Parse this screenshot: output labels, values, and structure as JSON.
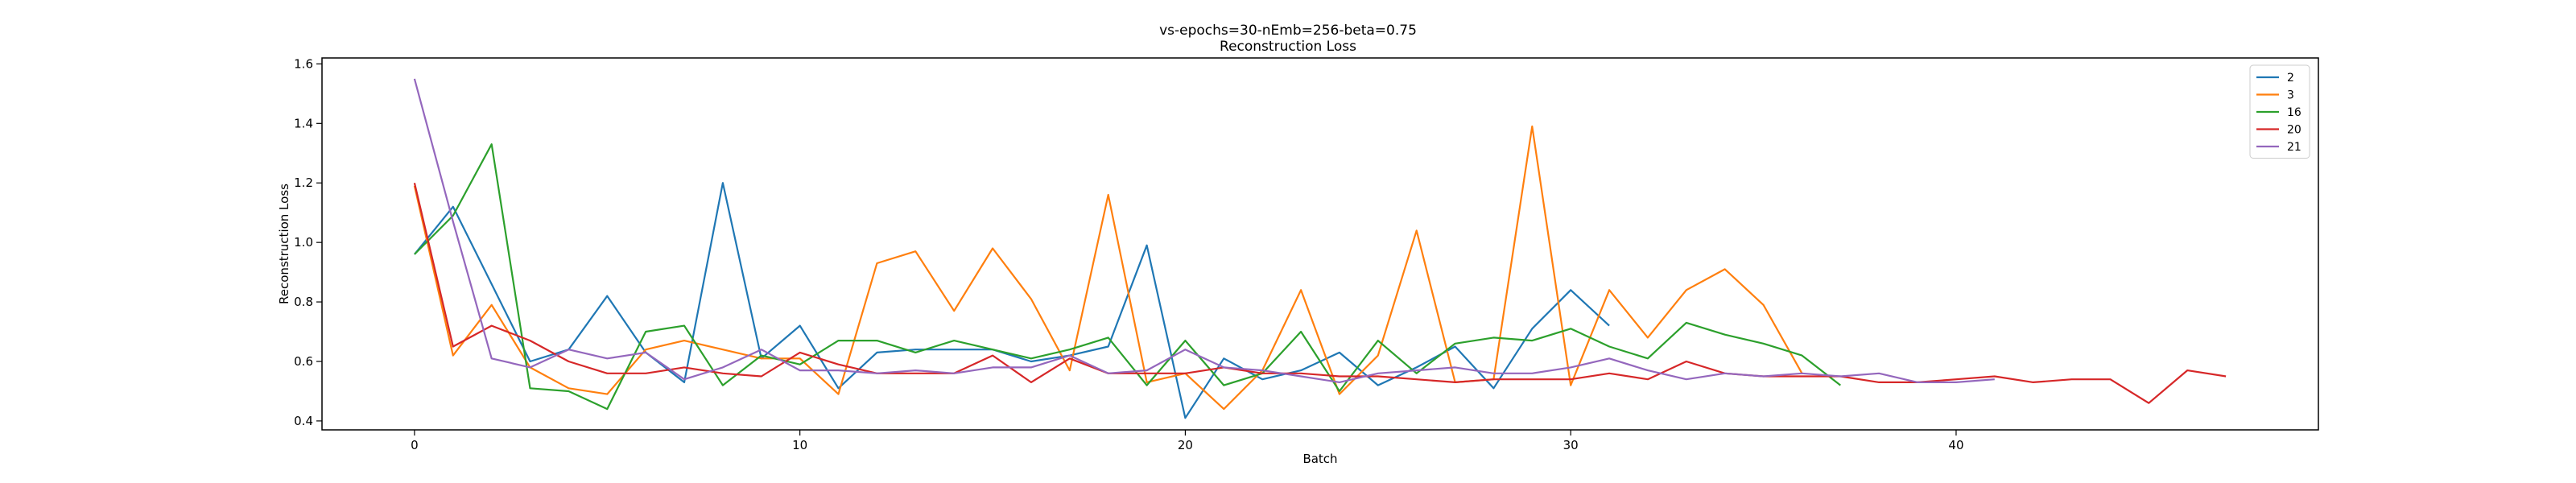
{
  "chart_data": {
    "type": "line",
    "title": "vs-epochs=30-nEmb=256-beta=0.75",
    "subtitle": "Reconstruction Loss",
    "xlabel": "Batch",
    "ylabel": "Reconstruction Loss",
    "xlim": [
      -2.4,
      49.4
    ],
    "ylim": [
      0.37,
      1.62
    ],
    "xticks": [
      0,
      10,
      20,
      30,
      40
    ],
    "yticks": [
      0.4,
      0.6,
      0.8,
      1.0,
      1.2,
      1.4,
      1.6
    ],
    "ytick_labels": [
      "0.4",
      "0.6",
      "0.8",
      "1.0",
      "1.2",
      "1.4",
      "1.6"
    ],
    "grid": false,
    "legend_position": "top-right",
    "series": [
      {
        "name": "2",
        "color": "#1f77b4",
        "x": [
          0,
          1,
          2,
          3,
          4,
          5,
          6,
          7,
          8,
          9,
          10,
          11,
          12,
          13,
          14,
          15,
          16,
          17,
          18,
          19,
          20,
          21,
          22,
          23,
          24,
          25,
          26,
          27,
          28,
          29,
          30,
          31
        ],
        "y": [
          0.96,
          1.12,
          0.86,
          0.6,
          0.64,
          0.82,
          0.63,
          0.53,
          1.2,
          0.61,
          0.72,
          0.51,
          0.63,
          0.64,
          0.64,
          0.64,
          0.6,
          0.62,
          0.65,
          0.99,
          0.41,
          0.61,
          0.54,
          0.57,
          0.63,
          0.52,
          0.58,
          0.65,
          0.51,
          0.71,
          0.84,
          0.72
        ]
      },
      {
        "name": "3",
        "color": "#ff7f0e",
        "x": [
          0,
          1,
          2,
          3,
          4,
          5,
          6,
          7,
          8,
          9,
          10,
          11,
          12,
          13,
          14,
          15,
          16,
          17,
          18,
          19,
          20,
          21,
          22,
          23,
          24,
          25,
          26,
          27,
          28,
          29,
          30,
          31,
          32,
          33,
          34,
          35,
          36
        ],
        "y": [
          1.19,
          0.62,
          0.79,
          0.58,
          0.51,
          0.49,
          0.64,
          0.67,
          0.64,
          0.61,
          0.61,
          0.49,
          0.93,
          0.97,
          0.77,
          0.98,
          0.81,
          0.57,
          1.16,
          0.53,
          0.56,
          0.44,
          0.57,
          0.84,
          0.49,
          0.62,
          1.04,
          0.53,
          0.54,
          1.39,
          0.52,
          0.84,
          0.68,
          0.84,
          0.91,
          0.79,
          0.56
        ]
      },
      {
        "name": "16",
        "color": "#2ca02c",
        "x": [
          0,
          1,
          2,
          3,
          4,
          5,
          6,
          7,
          8,
          9,
          10,
          11,
          12,
          13,
          14,
          15,
          16,
          17,
          18,
          19,
          20,
          21,
          22,
          23,
          24,
          25,
          26,
          27,
          28,
          29,
          30,
          31,
          32,
          33,
          34,
          35,
          36,
          37
        ],
        "y": [
          0.96,
          1.09,
          1.33,
          0.51,
          0.5,
          0.44,
          0.7,
          0.72,
          0.52,
          0.62,
          0.59,
          0.67,
          0.67,
          0.63,
          0.67,
          0.64,
          0.61,
          0.64,
          0.68,
          0.52,
          0.67,
          0.52,
          0.56,
          0.7,
          0.5,
          0.67,
          0.56,
          0.66,
          0.68,
          0.67,
          0.71,
          0.65,
          0.61,
          0.73,
          0.69,
          0.66,
          0.62,
          0.52
        ]
      },
      {
        "name": "20",
        "color": "#d62728",
        "x": [
          0,
          1,
          2,
          3,
          4,
          5,
          6,
          7,
          8,
          9,
          10,
          11,
          12,
          13,
          14,
          15,
          16,
          17,
          18,
          19,
          20,
          21,
          22,
          23,
          24,
          25,
          26,
          27,
          28,
          29,
          30,
          31,
          32,
          33,
          34,
          35,
          36,
          37,
          38,
          39,
          40,
          41,
          42,
          43,
          44,
          45,
          46,
          47
        ],
        "y": [
          1.2,
          0.65,
          0.72,
          0.67,
          0.6,
          0.56,
          0.56,
          0.58,
          0.56,
          0.55,
          0.63,
          0.59,
          0.56,
          0.56,
          0.56,
          0.62,
          0.53,
          0.61,
          0.56,
          0.56,
          0.56,
          0.58,
          0.56,
          0.56,
          0.55,
          0.55,
          0.54,
          0.53,
          0.54,
          0.54,
          0.54,
          0.56,
          0.54,
          0.6,
          0.56,
          0.55,
          0.55,
          0.55,
          0.53,
          0.53,
          0.54,
          0.55,
          0.53,
          0.54,
          0.54,
          0.46,
          0.57,
          0.55
        ]
      },
      {
        "name": "21",
        "color": "#9467bd",
        "x": [
          0,
          1,
          2,
          3,
          4,
          5,
          6,
          7,
          8,
          9,
          10,
          11,
          12,
          13,
          14,
          15,
          16,
          17,
          18,
          19,
          20,
          21,
          22,
          23,
          24,
          25,
          26,
          27,
          28,
          29,
          30,
          31,
          32,
          33,
          34,
          35,
          36,
          37,
          38,
          39,
          40,
          41
        ],
        "y": [
          1.55,
          1.07,
          0.61,
          0.58,
          0.64,
          0.61,
          0.63,
          0.54,
          0.58,
          0.64,
          0.57,
          0.57,
          0.56,
          0.57,
          0.56,
          0.58,
          0.58,
          0.62,
          0.56,
          0.57,
          0.64,
          0.58,
          0.57,
          0.55,
          0.53,
          0.56,
          0.57,
          0.58,
          0.56,
          0.56,
          0.58,
          0.61,
          0.57,
          0.54,
          0.56,
          0.55,
          0.56,
          0.55,
          0.56,
          0.53,
          0.53,
          0.54
        ]
      }
    ]
  }
}
